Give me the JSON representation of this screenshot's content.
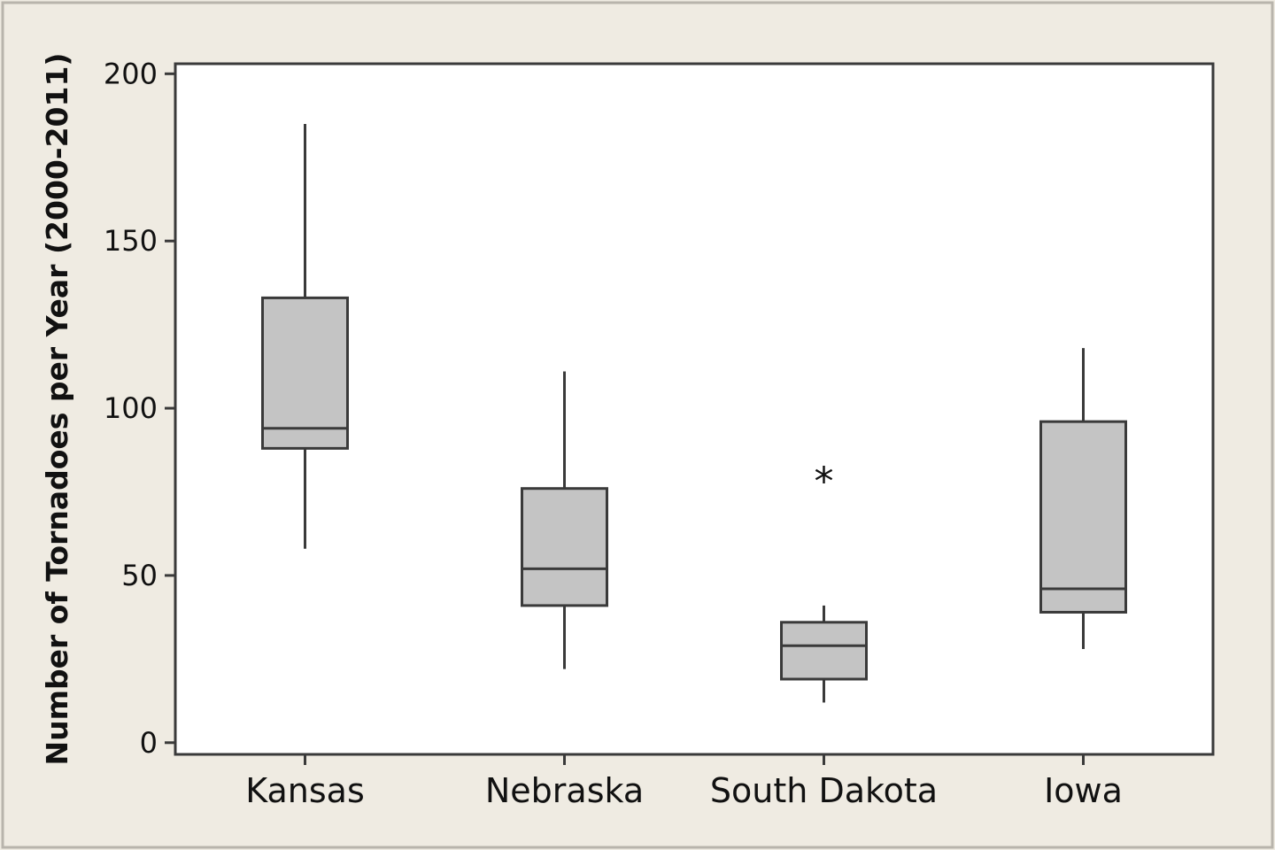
{
  "chart_data": {
    "type": "boxplot",
    "title": "",
    "xlabel": "",
    "ylabel": "Number of Tornadoes per Year (2000-2011)",
    "ylim": [
      -3.5,
      203
    ],
    "yticks": [
      0,
      50,
      100,
      150,
      200
    ],
    "grid": false,
    "legend": "none",
    "categories": [
      "Kansas",
      "Nebraska",
      "South Dakota",
      "Iowa"
    ],
    "boxes": [
      {
        "category": "Kansas",
        "whisker_low": 58,
        "q1": 88,
        "median": 94,
        "q3": 133,
        "whisker_high": 185,
        "outliers": []
      },
      {
        "category": "Nebraska",
        "whisker_low": 22,
        "q1": 41,
        "median": 52,
        "q3": 76,
        "whisker_high": 111,
        "outliers": []
      },
      {
        "category": "South Dakota",
        "whisker_low": 12,
        "q1": 19,
        "median": 29,
        "q3": 36,
        "whisker_high": 41,
        "outliers": [
          80
        ]
      },
      {
        "category": "Iowa",
        "whisker_low": 28,
        "q1": 39,
        "median": 46,
        "q3": 96,
        "whisker_high": 118,
        "outliers": []
      }
    ],
    "colors": {
      "box_fill": "#c4c4c4",
      "stroke": "#3a3a3a",
      "plot_background": "#ffffff",
      "figure_background": "#efebe2"
    }
  }
}
